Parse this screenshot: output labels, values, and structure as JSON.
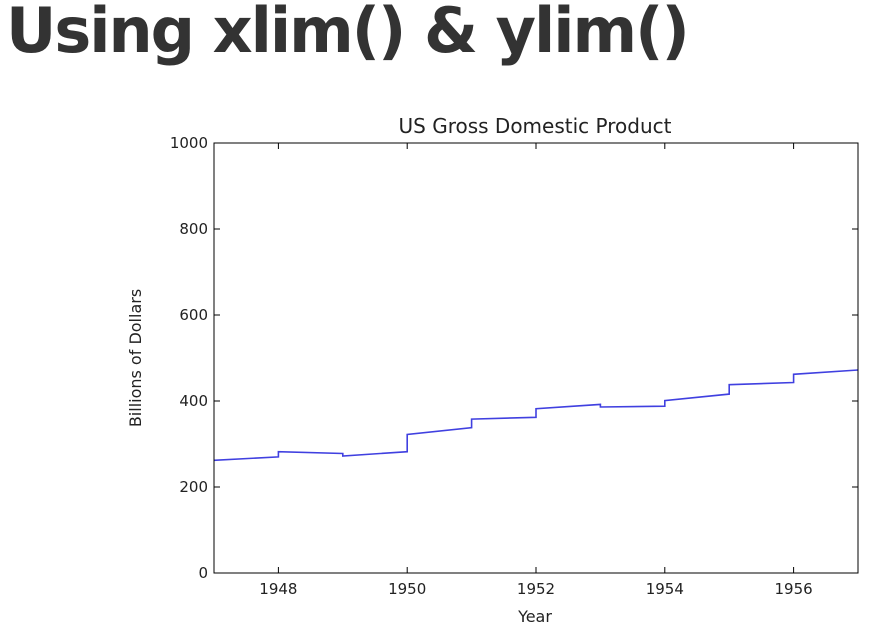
{
  "slide": {
    "title": "Using xlim() & ylim()"
  },
  "chart_data": {
    "type": "line",
    "title": "US Gross Domestic Product",
    "xlabel": "Year",
    "ylabel": "Billions of Dollars",
    "xlim": [
      1947,
      1957
    ],
    "ylim": [
      0,
      1000
    ],
    "xticks": [
      "1948",
      "1950",
      "1952",
      "1954",
      "1956"
    ],
    "yticks": [
      "0",
      "200",
      "400",
      "600",
      "800",
      "1000"
    ],
    "grid": false,
    "line_color": "#4040e0",
    "series": [
      {
        "x": [
          1947.0,
          1948.0,
          1948.0,
          1949.0,
          1949.0,
          1950.0,
          1950.0,
          1951.0,
          1951.0,
          1952.0,
          1952.0,
          1953.0,
          1953.0,
          1954.0,
          1954.0,
          1955.0,
          1955.0,
          1956.0,
          1956.0,
          1957.0
        ],
        "y": [
          262,
          270,
          282,
          278,
          272,
          282,
          322,
          338,
          358,
          362,
          382,
          392,
          386,
          388,
          401,
          416,
          438,
          443,
          462,
          472
        ]
      }
    ]
  }
}
